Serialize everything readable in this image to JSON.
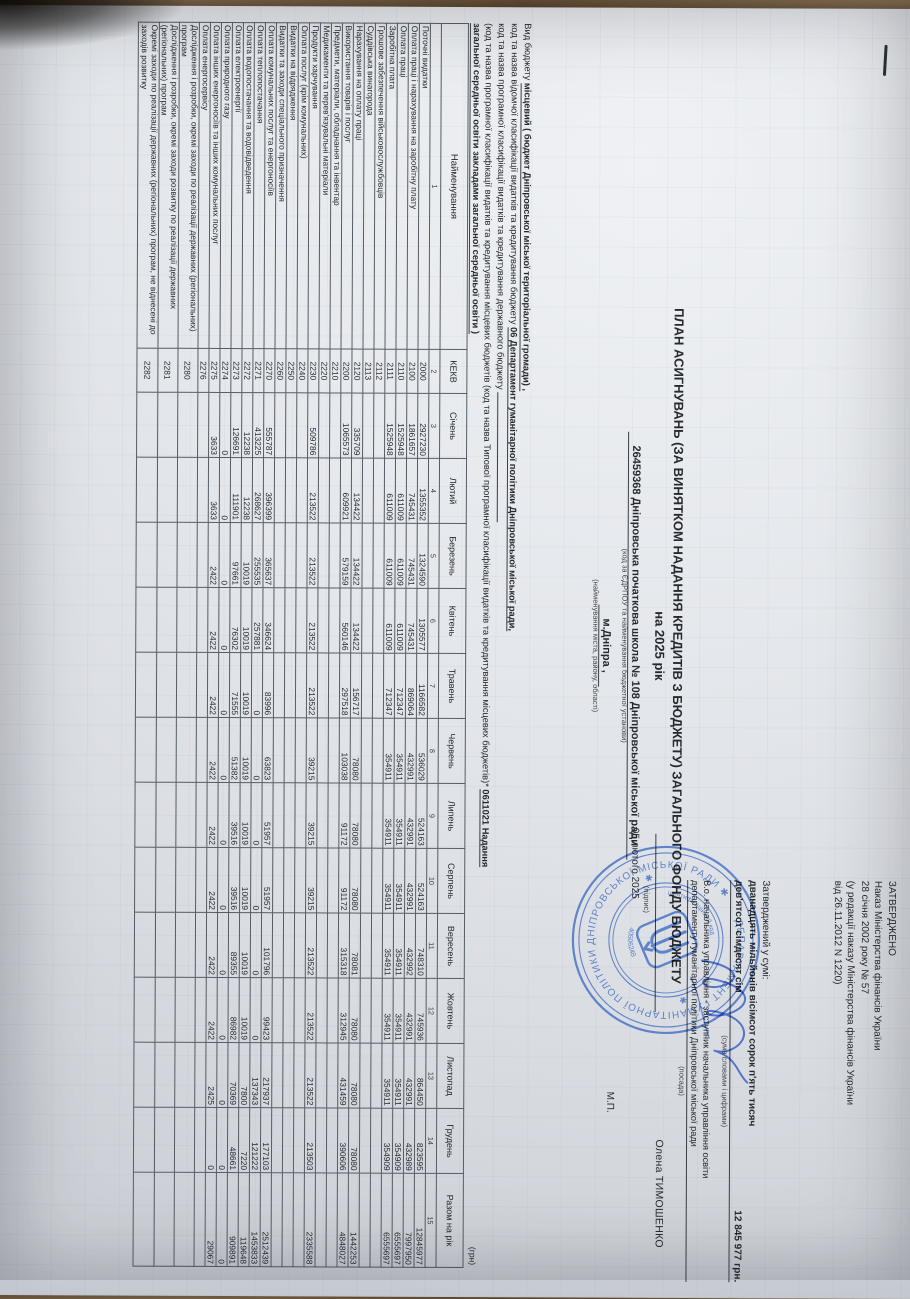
{
  "approval": {
    "approved_label": "ЗАТВЕРДЖЕНО",
    "order_line1": "Наказ Міністерства фінансів України",
    "order_line2": "28 січня 2002 року № 57",
    "order_line3": "(у редакції наказу Міністерства фінансів України",
    "order_line4": "від 26.11.2012 N 1220)",
    "approved_sum_label": "Затверджений у сумі:",
    "sum_words_line1": "дванадцять мільйонів вісімсот сорок п'ять тисяч",
    "sum_words_line2": "дев'ятсот сімдесят сім",
    "sum_figures": "12 845 977 грн.",
    "sum_caption": "(сума словами і цифрами)",
    "position_line1": "В.о. начальника управління - заступник начальника управління освіти",
    "position_line2": "департаменту гуманітарної політики Дніпровської міської ради",
    "position_caption": "(посада)",
    "signature_caption": "(підпис)",
    "signer_name": "Олена ТИМОШЕНКО",
    "date": "05 лютого 2025",
    "seal_mark": "М.П."
  },
  "title": {
    "line1": "ПЛАН АСИГНУВАНЬ (ЗА ВИНЯТКОМ НАДАННЯ КРЕДИТІВ З БЮДЖЕТУ) ЗАГАЛЬНОГО ФОНДУ БЮДЖЕТУ",
    "line2": "на 2025 рік",
    "institution": "26459368 Дніпровська початкова школа № 108 Дніпровської міської ради",
    "institution_caption": "(код за ЄДРПОУ та найменування бюджетної установи)",
    "city": "м.Дніпра ,",
    "city_caption": "(найменування міста, району, області)"
  },
  "form_lines": {
    "budget_type_label": "Вид бюджету",
    "budget_type_value": "місцевий ( бюджет Дніпровської міської територіальної громади) ,",
    "vidomcha_label": "код та назва відомчої класифікації видатків та кредитування бюджету",
    "vidomcha_value": "06 Департамент гуманітарної політики Дніпровської міської ради,",
    "program_state_label": "код та назва програмної класифікації видатків та кредитування державного бюджету",
    "program_local_label": "(код та назва програмної класифікації видатків та кредитування місцевих бюджетів (код та назва Типової програмної класифікації видатків та кредитування місцевих бюджетів)*",
    "program_local_value": "0611021 Надання загальної середньої освіти закладами загальної середньої освіти )",
    "unit_note": "(грн)"
  },
  "table": {
    "columns": [
      "Найменування",
      "КЕКВ",
      "Січень",
      "Лютий",
      "Березень",
      "Квітень",
      "Травень",
      "Червень",
      "Липень",
      "Серпень",
      "Вересень",
      "Жовтень",
      "Листопад",
      "Грудень",
      "Разом на рік"
    ],
    "col_numbers": [
      "1",
      "2",
      "3",
      "4",
      "5",
      "6",
      "7",
      "8",
      "9",
      "10",
      "11",
      "12",
      "13",
      "14",
      "15"
    ],
    "rows": [
      {
        "name": "Поточні видатки",
        "kekv": "2000",
        "values": [
          "2927230",
          "1355352",
          "1324590",
          "1305577",
          "1166582",
          "536029",
          "524163",
          "524163",
          "748310",
          "745936",
          "864450",
          "823595"
        ],
        "total": "12845977"
      },
      {
        "name": "Оплата праці і нарахування на заробітну плату",
        "kekv": "2100",
        "values": [
          "1861657",
          "745431",
          "745431",
          "745431",
          "869064",
          "432991",
          "432991",
          "432991",
          "432992",
          "432991",
          "432991",
          "432989"
        ],
        "total": "7997950"
      },
      {
        "name": "Оплата праці",
        "kekv": "2110",
        "values": [
          "1525948",
          "611009",
          "611009",
          "611009",
          "712347",
          "354911",
          "354911",
          "354911",
          "354911",
          "354911",
          "354911",
          "354909"
        ],
        "total": "6555697"
      },
      {
        "name": "Заробітна плата",
        "kekv": "2111",
        "values": [
          "1525948",
          "611009",
          "611009",
          "611009",
          "712347",
          "354911",
          "354911",
          "354911",
          "354911",
          "354911",
          "354911",
          "354909"
        ],
        "total": "6555697"
      },
      {
        "name": "Грошове забезпечення військовослужбовців",
        "kekv": "2112",
        "values": [
          "",
          "",
          "",
          "",
          "",
          "",
          "",
          "",
          "",
          "",
          "",
          ""
        ],
        "total": ""
      },
      {
        "name": "Суддівська винагорода",
        "kekv": "2113",
        "values": [
          "",
          "",
          "",
          "",
          "",
          "",
          "",
          "",
          "",
          "",
          "",
          ""
        ],
        "total": ""
      },
      {
        "name": "Нарахування на оплату праці",
        "kekv": "2120",
        "values": [
          "335709",
          "134422",
          "134422",
          "134422",
          "156717",
          "78080",
          "78080",
          "78080",
          "78081",
          "78080",
          "78080",
          "78080"
        ],
        "total": "1442253"
      },
      {
        "name": "Використання товарів і послуг",
        "kekv": "2200",
        "values": [
          "1065573",
          "609921",
          "579159",
          "560146",
          "297518",
          "103038",
          "91172",
          "91172",
          "315318",
          "312945",
          "431459",
          "390606"
        ],
        "total": "4848027"
      },
      {
        "name": "Предмети, матеріали, обладнання та інвентар",
        "kekv": "2210",
        "values": [
          "",
          "",
          "",
          "",
          "",
          "",
          "",
          "",
          "",
          "",
          "",
          ""
        ],
        "total": ""
      },
      {
        "name": "Медикаменти та перев'язувальні матеріали",
        "kekv": "2220",
        "values": [
          "",
          "",
          "",
          "",
          "",
          "",
          "",
          "",
          "",
          "",
          "",
          ""
        ],
        "total": ""
      },
      {
        "name": "Продукти харчування",
        "kekv": "2230",
        "values": [
          "509786",
          "213522",
          "213522",
          "213522",
          "213522",
          "39215",
          "39215",
          "39215",
          "213522",
          "213522",
          "213522",
          "213503"
        ],
        "total": "2335588"
      },
      {
        "name": "Оплата послуг (крім комунальних)",
        "kekv": "2240",
        "values": [
          "",
          "",
          "",
          "",
          "",
          "",
          "",
          "",
          "",
          "",
          "",
          ""
        ],
        "total": ""
      },
      {
        "name": "Видатки на відрядження",
        "kekv": "2250",
        "values": [
          "",
          "",
          "",
          "",
          "",
          "",
          "",
          "",
          "",
          "",
          "",
          ""
        ],
        "total": ""
      },
      {
        "name": "Видатки та заходи спеціального призначення",
        "kekv": "2260",
        "values": [
          "",
          "",
          "",
          "",
          "",
          "",
          "",
          "",
          "",
          "",
          "",
          ""
        ],
        "total": ""
      },
      {
        "name": "Оплата комунальних послуг та енергоносіїв",
        "kekv": "2270",
        "values": [
          "555787",
          "396399",
          "365637",
          "346624",
          "83996",
          "63823",
          "51957",
          "51957",
          "101796",
          "99423",
          "217937",
          "177103"
        ],
        "total": "2512439"
      },
      {
        "name": "Оплата теплопостачання",
        "kekv": "2271",
        "values": [
          "413225",
          "268627",
          "255535",
          "257881",
          "0",
          "0",
          "0",
          "0",
          "0",
          "0",
          "137343",
          "121222"
        ],
        "total": "1453833"
      },
      {
        "name": "Оплата водопостачання та водовідведення",
        "kekv": "2272",
        "values": [
          "12238",
          "12238",
          "10019",
          "10019",
          "10019",
          "10019",
          "10019",
          "10019",
          "10019",
          "10019",
          "7800",
          "7220"
        ],
        "total": "119648"
      },
      {
        "name": "Оплата електроенергії",
        "kekv": "2273",
        "values": [
          "126691",
          "111901",
          "97661",
          "76302",
          "71555",
          "51382",
          "39516",
          "39516",
          "89355",
          "86982",
          "70369",
          "48661"
        ],
        "total": "909891"
      },
      {
        "name": "Оплата природного газу",
        "kekv": "2274",
        "values": [
          "0",
          "0",
          "0",
          "0",
          "0",
          "0",
          "0",
          "0",
          "0",
          "0",
          "0",
          "0"
        ],
        "total": "0"
      },
      {
        "name": "Оплата інших енергоносіїв та інших комунальних послуг",
        "kekv": "2275",
        "values": [
          "3633",
          "3633",
          "2422",
          "2422",
          "2422",
          "2422",
          "2422",
          "2422",
          "2422",
          "2422",
          "2425",
          "0"
        ],
        "total": "29067"
      },
      {
        "name": "Оплата енергосервісу",
        "kekv": "2276",
        "values": [
          "",
          "",
          "",
          "",
          "",
          "",
          "",
          "",
          "",
          "",
          "",
          ""
        ],
        "total": ""
      },
      {
        "name": "Дослідження і розробки, окремі заходи по реалізації державних (регіональних) програм",
        "kekv": "2280",
        "values": [
          "",
          "",
          "",
          "",
          "",
          "",
          "",
          "",
          "",
          "",
          "",
          ""
        ],
        "total": ""
      },
      {
        "name": "Дослідження і розробки, окремі заходи розвитку по реалізації державних (регіональних) програм",
        "kekv": "2281",
        "values": [
          "",
          "",
          "",
          "",
          "",
          "",
          "",
          "",
          "",
          "",
          "",
          ""
        ],
        "total": ""
      },
      {
        "name": "Окремі заходи по реалізації державних (регіональних) програм, не віднесені до заходів розвитку",
        "kekv": "2282",
        "values": [
          "",
          "",
          "",
          "",
          "",
          "",
          "",
          "",
          "",
          "",
          "",
          ""
        ],
        "total": ""
      }
    ]
  },
  "stamp": {
    "ring_text": "ДЕПАРТАМЕНТ ГУМАНІТАРНОЇ ПОЛІТИКИ ДНІПРОВСЬКОЇ МІСЬКОЇ РАДИ ✱",
    "inner_top": "ідентифікаційний код",
    "inner_code": "40506248",
    "color": "#3f6cc2"
  },
  "photo": {
    "paper_color": "#e4e7eb",
    "wood_color": "#7b6247",
    "ink_color": "#26292e"
  }
}
